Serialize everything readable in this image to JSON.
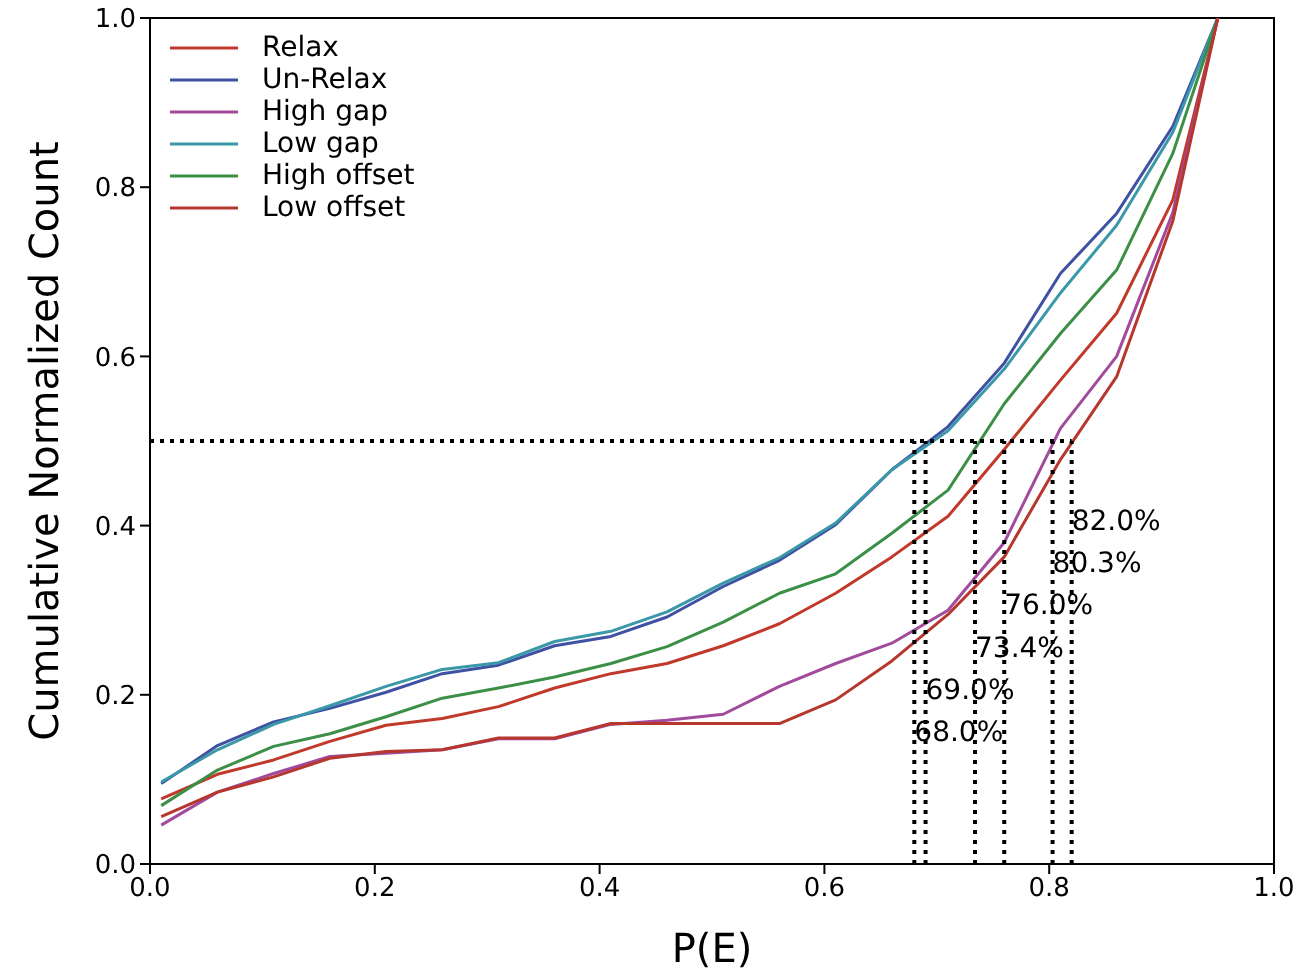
{
  "chart_data": {
    "type": "line",
    "xlabel": "P(E)",
    "ylabel": "Cumulative Normalized Count",
    "x": [
      0.01,
      0.06,
      0.11,
      0.16,
      0.21,
      0.26,
      0.31,
      0.36,
      0.41,
      0.46,
      0.51,
      0.56,
      0.61,
      0.66,
      0.71,
      0.76,
      0.81,
      0.86,
      0.91,
      0.95
    ],
    "series": [
      {
        "name": "Relax",
        "color": "#c0392b",
        "values": [
          0.077,
          0.106,
          0.123,
          0.145,
          0.164,
          0.172,
          0.186,
          0.208,
          0.225,
          0.237,
          0.258,
          0.284,
          0.32,
          0.363,
          0.411,
          0.49,
          0.572,
          0.651,
          0.785,
          1.0
        ]
      },
      {
        "name": "Un-Relax",
        "color": "#3f51a3",
        "values": [
          0.095,
          0.14,
          0.168,
          0.184,
          0.203,
          0.225,
          0.235,
          0.258,
          0.269,
          0.292,
          0.328,
          0.359,
          0.401,
          0.466,
          0.517,
          0.592,
          0.698,
          0.769,
          0.872,
          1.0
        ]
      },
      {
        "name": "High gap",
        "color": "#a24a9c",
        "values": [
          0.046,
          0.085,
          0.107,
          0.127,
          0.131,
          0.135,
          0.148,
          0.148,
          0.165,
          0.17,
          0.177,
          0.21,
          0.237,
          0.261,
          0.3,
          0.38,
          0.515,
          0.6,
          0.77,
          1.0
        ]
      },
      {
        "name": "Low gap",
        "color": "#3a98a8",
        "values": [
          0.097,
          0.135,
          0.165,
          0.187,
          0.21,
          0.23,
          0.238,
          0.263,
          0.275,
          0.298,
          0.332,
          0.362,
          0.403,
          0.466,
          0.512,
          0.585,
          0.675,
          0.755,
          0.865,
          1.0
        ]
      },
      {
        "name": "High offset",
        "color": "#3b8f47",
        "values": [
          0.069,
          0.111,
          0.139,
          0.154,
          0.174,
          0.196,
          0.208,
          0.221,
          0.237,
          0.257,
          0.286,
          0.32,
          0.343,
          0.391,
          0.442,
          0.544,
          0.627,
          0.702,
          0.84,
          1.0
        ]
      },
      {
        "name": "Low offset",
        "color": "#b5372d",
        "values": [
          0.056,
          0.085,
          0.103,
          0.125,
          0.133,
          0.135,
          0.149,
          0.149,
          0.166,
          0.166,
          0.166,
          0.166,
          0.194,
          0.24,
          0.295,
          0.363,
          0.478,
          0.576,
          0.76,
          1.0
        ]
      }
    ],
    "xlim": [
      0.0,
      1.0
    ],
    "ylim": [
      0.0,
      1.0
    ],
    "xticks": [
      {
        "value": 0,
        "label": "0.0"
      },
      {
        "value": 0.2,
        "label": "0.2"
      },
      {
        "value": 0.4,
        "label": "0.4"
      },
      {
        "value": 0.6,
        "label": "0.6"
      },
      {
        "value": 0.8,
        "label": "0.8"
      },
      {
        "value": 1,
        "label": "1.0"
      }
    ],
    "yticks": [
      {
        "value": 0,
        "label": "0.0"
      },
      {
        "value": 0.2,
        "label": "0.2"
      },
      {
        "value": 0.4,
        "label": "0.4"
      },
      {
        "value": 0.6,
        "label": "0.6"
      },
      {
        "value": 0.8,
        "label": "0.8"
      },
      {
        "value": 1,
        "label": "1.0"
      }
    ],
    "ref_lines": [
      {
        "axis": "y",
        "value": 0.5,
        "line_style": "dotted",
        "color": "#000000"
      },
      {
        "axis": "x",
        "value": 0.68,
        "label": "68.0%",
        "line_style": "dotted",
        "color": "#000000"
      },
      {
        "axis": "x",
        "value": 0.69,
        "label": "69.0%",
        "line_style": "dotted",
        "color": "#000000"
      },
      {
        "axis": "x",
        "value": 0.734,
        "label": "73.4%",
        "line_style": "dotted",
        "color": "#000000"
      },
      {
        "axis": "x",
        "value": 0.76,
        "label": "76.0%",
        "line_style": "dotted",
        "color": "#000000"
      },
      {
        "axis": "x",
        "value": 0.803,
        "label": "80.3%",
        "line_style": "dotted",
        "color": "#000000"
      },
      {
        "axis": "x",
        "value": 0.82,
        "label": "82.0%",
        "line_style": "dotted",
        "color": "#000000"
      }
    ],
    "legend": "top left",
    "grid": false,
    "marker": "none",
    "line_style": "solid"
  }
}
